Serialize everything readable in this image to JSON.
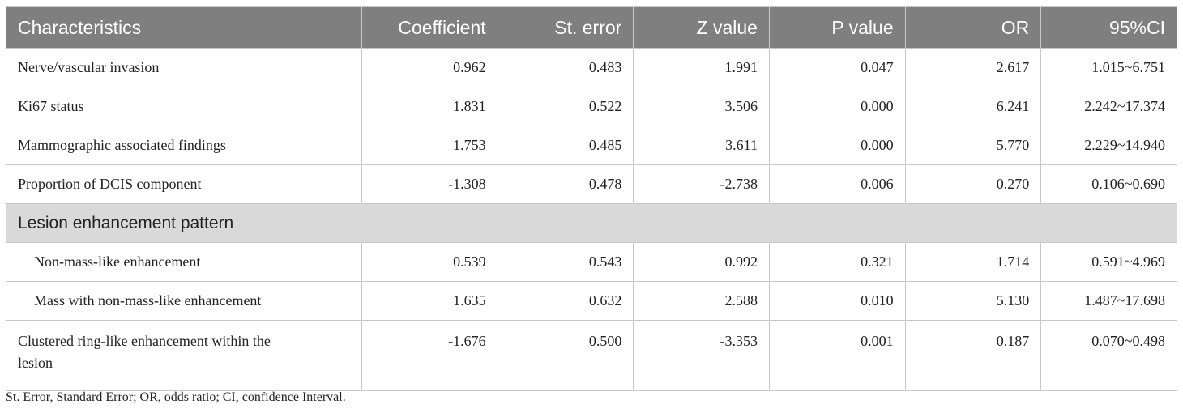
{
  "table": {
    "header": [
      "Characteristics",
      "Coefficient",
      "St. error",
      "Z value",
      "P value",
      "OR",
      "95%CI"
    ],
    "rows": [
      [
        "Nerve/vascular invasion",
        "0.962",
        "0.483",
        "1.991",
        "0.047",
        "2.617",
        "1.015~6.751"
      ],
      [
        "Ki67 status",
        "1.831",
        "0.522",
        "3.506",
        "0.000",
        "6.241",
        "2.242~17.374"
      ],
      [
        "Mammographic associated findings",
        "1.753",
        "0.485",
        "3.611",
        "0.000",
        "5.770",
        "2.229~14.940"
      ],
      [
        "Proportion of DCIS component",
        "-1.308",
        "0.478",
        "-2.738",
        "0.006",
        "0.270",
        "0.106~0.690"
      ],
      [
        "Lesion enhancement pattern"
      ],
      [
        "Non-mass-like enhancement",
        "0.539",
        "0.543",
        "0.992",
        "0.321",
        "1.714",
        "0.591~4.969"
      ],
      [
        "Mass with non-mass-like enhancement",
        "1.635",
        "0.632",
        "2.588",
        "0.010",
        "5.130",
        "1.487~17.698"
      ],
      [
        "Clustered ring-like enhancement within the lesion",
        "-1.676",
        "0.500",
        "-3.353",
        "0.001",
        "0.187",
        "0.070~0.498"
      ]
    ]
  },
  "footnote": "St. Error, Standard Error; OR, odds ratio; CI, confidence Interval."
}
